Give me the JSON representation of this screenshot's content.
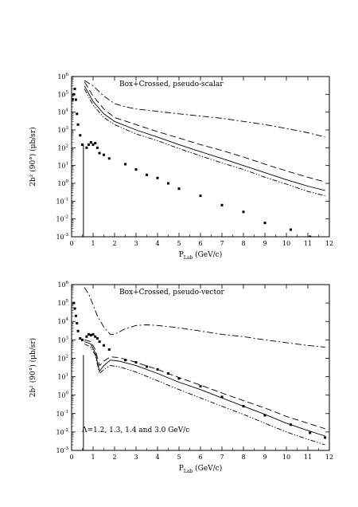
{
  "chart_data": [
    {
      "type": "line",
      "annotation": "Box+Crossed, pseudo-scalar",
      "ylabel": "2b² (90°) (μb/sr)",
      "xlabel_main": "P",
      "xlabel_sub": "Lab",
      "xlabel_unit": "(GeV/c)",
      "xlim": [
        0,
        12
      ],
      "ylim_log10": [
        -3,
        6
      ],
      "x_ticks": [
        0,
        1,
        2,
        3,
        4,
        5,
        6,
        7,
        8,
        9,
        10,
        11,
        12
      ],
      "y_tick_exponents": [
        -3,
        -2,
        -1,
        0,
        1,
        2,
        3,
        4,
        5,
        6
      ],
      "series": [
        {
          "style": "solid",
          "x": [
            0.6,
            1.0,
            1.5,
            2.0,
            3.0,
            4.0,
            5.0,
            6.0,
            7.0,
            8.0,
            9.0,
            10.0,
            11.0,
            11.8
          ],
          "y": [
            300000,
            40000,
            8000,
            3000,
            1000,
            400,
            150,
            60,
            25,
            10,
            4,
            1.6,
            0.7,
            0.4
          ]
        },
        {
          "style": "dashed",
          "x": [
            0.6,
            1.0,
            1.5,
            2.0,
            3.0,
            4.0,
            5.0,
            6.0,
            7.0,
            8.0,
            9.0,
            10.0,
            11.0,
            11.8
          ],
          "y": [
            500000,
            80000,
            15000,
            5000,
            2000,
            800,
            350,
            150,
            70,
            30,
            12,
            5,
            2.2,
            1.2
          ]
        },
        {
          "style": "dash-dot-dot",
          "x": [
            0.6,
            1.0,
            1.5,
            2.0,
            3.0,
            4.0,
            5.0,
            6.0,
            7.0,
            8.0,
            9.0,
            10.0,
            11.0,
            11.8
          ],
          "y": [
            200000,
            25000,
            5000,
            2000,
            600,
            250,
            90,
            35,
            14,
            6,
            2.2,
            0.9,
            0.35,
            0.2
          ]
        },
        {
          "style": "dash-dot",
          "x": [
            0.6,
            1.0,
            1.5,
            2.0,
            2.5,
            3.0,
            4.0,
            5.0,
            6.0,
            7.0,
            8.0,
            9.0,
            10.0,
            11.0,
            11.8
          ],
          "y": [
            600000,
            300000,
            80000,
            30000,
            20000,
            15000,
            11000,
            8000,
            6000,
            4500,
            3000,
            2000,
            1200,
            700,
            400
          ]
        }
      ],
      "points": {
        "x": [
          0.05,
          0.1,
          0.15,
          0.2,
          0.25,
          0.3,
          0.4,
          0.5,
          0.7,
          0.8,
          0.9,
          1.0,
          1.1,
          1.2,
          1.3,
          1.5,
          1.75,
          2.5,
          3.0,
          3.5,
          4.0,
          4.5,
          5.0,
          6.0,
          7.0,
          8.0,
          9.0,
          10.2,
          11.1,
          11.8
        ],
        "y": [
          50000,
          100000,
          200000,
          50000,
          8000,
          2000,
          500,
          150,
          100,
          150,
          200,
          150,
          180,
          100,
          50,
          40,
          25,
          12,
          6,
          3,
          2,
          1,
          0.5,
          0.2,
          0.06,
          0.025,
          0.006,
          0.0025,
          0.001,
          0.0006
        ]
      }
    },
    {
      "type": "line",
      "annotation": "Box+Crossed, pseudo-vector",
      "label": "Λ=1.2, 1.3, 1.4 and 3.0 GeV/c",
      "ylabel": "2b² (90°) (μb/sr)",
      "xlabel_main": "P",
      "xlabel_sub": "Lab",
      "xlabel_unit": "(GeV/c)",
      "xlim": [
        0,
        12
      ],
      "ylim_log10": [
        -3,
        6
      ],
      "x_ticks": [
        0,
        1,
        2,
        3,
        4,
        5,
        6,
        7,
        8,
        9,
        10,
        11,
        12
      ],
      "y_tick_exponents": [
        -3,
        -2,
        -1,
        0,
        1,
        2,
        3,
        4,
        5,
        6
      ],
      "series": [
        {
          "style": "solid",
          "x": [
            0.6,
            0.9,
            1.1,
            1.3,
            1.5,
            1.8,
            2.2,
            3.0,
            4.0,
            5.0,
            6.0,
            7.0,
            8.0,
            9.0,
            10.0,
            11.0,
            11.8
          ],
          "y": [
            800,
            600,
            200,
            20,
            40,
            80,
            70,
            40,
            15,
            5,
            2,
            0.7,
            0.25,
            0.09,
            0.03,
            0.012,
            0.006
          ]
        },
        {
          "style": "dashed",
          "x": [
            0.6,
            0.9,
            1.1,
            1.3,
            1.5,
            1.8,
            2.2,
            3.0,
            4.0,
            5.0,
            6.0,
            7.0,
            8.0,
            9.0,
            10.0,
            11.0,
            11.8
          ],
          "y": [
            1000,
            800,
            300,
            40,
            70,
            120,
            110,
            60,
            25,
            9,
            3.5,
            1.3,
            0.5,
            0.2,
            0.07,
            0.03,
            0.015
          ]
        },
        {
          "style": "dash-dot-dot",
          "x": [
            0.6,
            0.9,
            1.1,
            1.3,
            1.5,
            1.8,
            2.2,
            3.0,
            4.0,
            5.0,
            6.0,
            7.0,
            8.0,
            9.0,
            10.0,
            11.0,
            11.8
          ],
          "y": [
            600,
            400,
            150,
            15,
            25,
            40,
            35,
            18,
            6,
            2,
            0.7,
            0.25,
            0.09,
            0.03,
            0.01,
            0.004,
            0.002
          ]
        },
        {
          "style": "dash-dot",
          "x": [
            0.6,
            0.8,
            1.0,
            1.2,
            1.5,
            1.8,
            2.0,
            2.5,
            3.0,
            3.5,
            4.0,
            5.0,
            6.0,
            7.0,
            8.0,
            9.0,
            10.0,
            11.0,
            11.8
          ],
          "y": [
            700000,
            300000,
            80000,
            20000,
            5000,
            2000,
            2000,
            4000,
            6000,
            6500,
            6000,
            4500,
            3000,
            2000,
            1500,
            1000,
            700,
            500,
            400
          ]
        }
      ],
      "points": {
        "x": [
          0.1,
          0.15,
          0.2,
          0.25,
          0.3,
          0.4,
          0.5,
          0.7,
          0.8,
          0.9,
          1.0,
          1.1,
          1.2,
          1.3,
          1.5,
          1.75,
          2.5,
          3.0,
          3.5,
          4.0,
          4.5,
          5.0,
          6.0,
          7.0,
          8.0,
          9.0,
          10.2,
          11.1,
          11.8
        ],
        "y": [
          100000,
          50000,
          20000,
          8000,
          3000,
          1200,
          1000,
          1500,
          2000,
          1800,
          2000,
          1500,
          1200,
          800,
          500,
          300,
          80,
          60,
          35,
          25,
          15,
          8,
          3,
          0.8,
          0.25,
          0.08,
          0.025,
          0.009,
          0.005
        ]
      }
    }
  ]
}
